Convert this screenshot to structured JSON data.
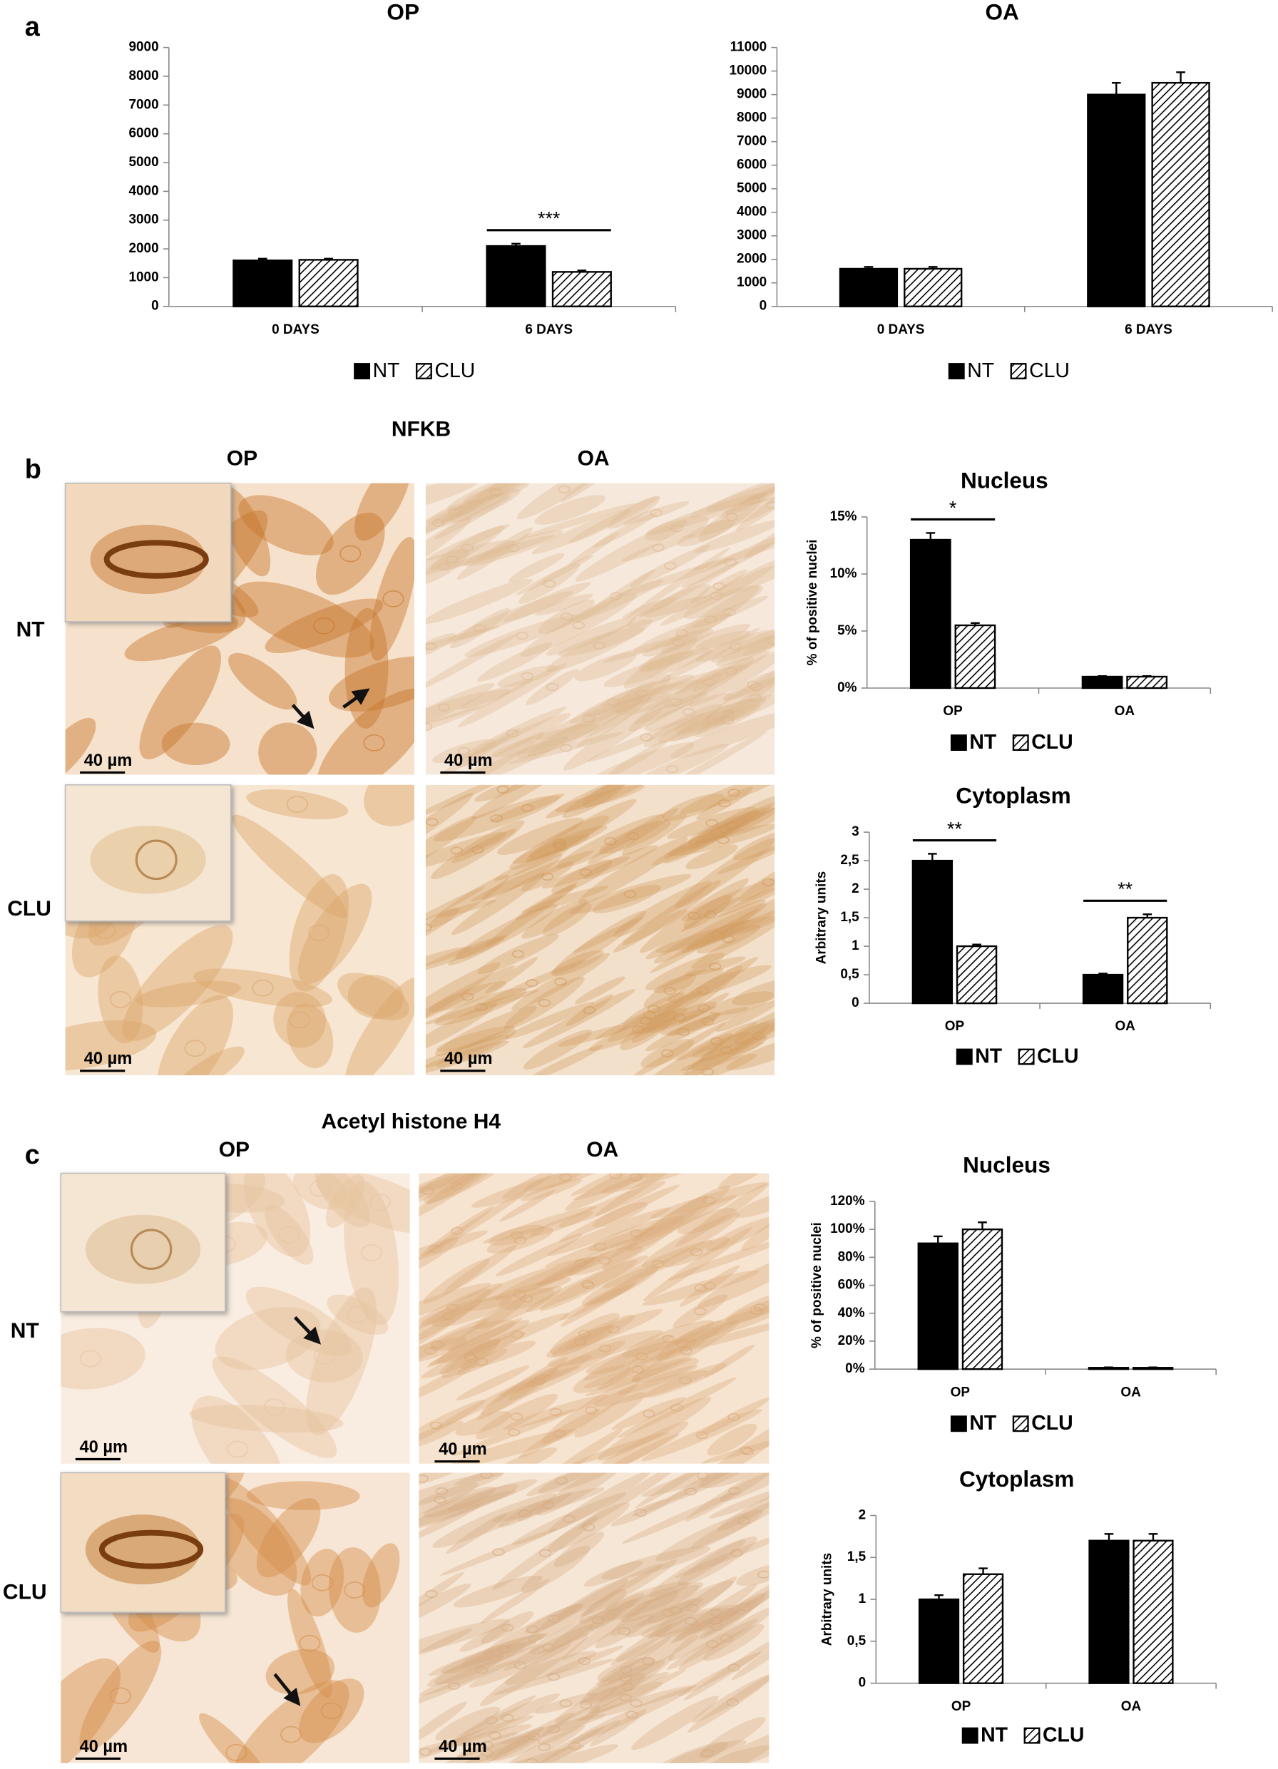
{
  "figure": {
    "panels": [
      {
        "label": "a"
      },
      {
        "label": "b",
        "title": "NFKB",
        "columns": [
          "OP",
          "OA"
        ],
        "rows": [
          "NT",
          "CLU"
        ],
        "scale_bar": "40 µm"
      },
      {
        "label": "c",
        "title": "Acetyl histone H4",
        "columns": [
          "OP",
          "OA"
        ],
        "rows": [
          "NT",
          "CLU"
        ],
        "scale_bar": "40 µm"
      }
    ]
  },
  "chart_data": [
    {
      "type": "bar",
      "title": "OP",
      "categories": [
        "0 DAYS",
        "6 DAYS"
      ],
      "series": [
        {
          "name": "NT",
          "color": "#000000",
          "hatched": false,
          "values": [
            1600,
            2100
          ],
          "errors": [
            60,
            80
          ]
        },
        {
          "name": "CLU",
          "color": "#000000",
          "hatched": true,
          "values": [
            1620,
            1200
          ],
          "errors": [
            40,
            50
          ]
        }
      ],
      "ylim": [
        0,
        9000
      ],
      "yticks": [
        0,
        1000,
        2000,
        3000,
        4000,
        5000,
        6000,
        7000,
        8000,
        9000
      ],
      "annotations": [
        {
          "text": "***",
          "category": "6 DAYS"
        }
      ]
    },
    {
      "type": "bar",
      "title": "OA",
      "categories": [
        "0 DAYS",
        "6 DAYS"
      ],
      "series": [
        {
          "name": "NT",
          "color": "#000000",
          "hatched": false,
          "values": [
            1600,
            9000
          ],
          "errors": [
            80,
            500
          ]
        },
        {
          "name": "CLU",
          "color": "#000000",
          "hatched": true,
          "values": [
            1600,
            9500
          ],
          "errors": [
            80,
            450
          ]
        }
      ],
      "ylim": [
        0,
        11000
      ],
      "yticks": [
        0,
        1000,
        2000,
        3000,
        4000,
        5000,
        6000,
        7000,
        8000,
        9000,
        10000,
        11000
      ]
    },
    {
      "type": "bar",
      "title": "Nucleus",
      "y_label": "% of positive nuclei",
      "categories": [
        "OP",
        "OA"
      ],
      "series": [
        {
          "name": "NT",
          "color": "#000000",
          "hatched": false,
          "values": [
            13,
            1
          ],
          "errors": [
            0.6,
            0.05
          ]
        },
        {
          "name": "CLU",
          "color": "#000000",
          "hatched": true,
          "values": [
            5.5,
            1
          ],
          "errors": [
            0.2,
            0.05
          ]
        }
      ],
      "ylim": [
        0,
        15
      ],
      "yticks": [
        {
          "value": 0,
          "label": "0%"
        },
        {
          "value": 5,
          "label": "5%"
        },
        {
          "value": 10,
          "label": "10%"
        },
        {
          "value": 15,
          "label": "15%"
        }
      ],
      "annotations": [
        {
          "text": "*",
          "category": "OP"
        }
      ]
    },
    {
      "type": "bar",
      "title": "Cytoplasm",
      "y_label": "Arbitrary units",
      "categories": [
        "OP",
        "OA"
      ],
      "series": [
        {
          "name": "NT",
          "color": "#000000",
          "hatched": false,
          "values": [
            2.5,
            0.5
          ],
          "errors": [
            0.12,
            0.02
          ]
        },
        {
          "name": "CLU",
          "color": "#000000",
          "hatched": true,
          "values": [
            1,
            1.5
          ],
          "errors": [
            0.03,
            0.06
          ]
        }
      ],
      "ylim": [
        0,
        3
      ],
      "yticks": [
        0,
        {
          "value": 0.5,
          "label": "0,5"
        },
        1,
        {
          "value": 1.5,
          "label": "1,5"
        },
        2,
        {
          "value": 2.5,
          "label": "2,5"
        },
        3
      ],
      "annotations": [
        {
          "text": "**",
          "category": "OP"
        },
        {
          "text": "**",
          "category": "OA"
        }
      ]
    },
    {
      "type": "bar",
      "title": "Nucleus",
      "y_label": "% of positive nuclei",
      "categories": [
        "OP",
        "OA"
      ],
      "series": [
        {
          "name": "NT",
          "color": "#000000",
          "hatched": false,
          "values": [
            90,
            1
          ],
          "errors": [
            5,
            0.3
          ]
        },
        {
          "name": "CLU",
          "color": "#000000",
          "hatched": true,
          "values": [
            100,
            1
          ],
          "errors": [
            5,
            0.3
          ]
        }
      ],
      "ylim": [
        0,
        120
      ],
      "yticks": [
        {
          "value": 0,
          "label": "0%"
        },
        {
          "value": 20,
          "label": "20%"
        },
        {
          "value": 40,
          "label": "40%"
        },
        {
          "value": 60,
          "label": "60%"
        },
        {
          "value": 80,
          "label": "80%"
        },
        {
          "value": 100,
          "label": "100%"
        },
        {
          "value": 120,
          "label": "120%"
        }
      ]
    },
    {
      "type": "bar",
      "title": "Cytoplasm",
      "y_label": "Arbitrary units",
      "categories": [
        "OP",
        "OA"
      ],
      "series": [
        {
          "name": "NT",
          "color": "#000000",
          "hatched": false,
          "values": [
            1,
            1.7
          ],
          "errors": [
            0.05,
            0.08
          ]
        },
        {
          "name": "CLU",
          "color": "#000000",
          "hatched": true,
          "values": [
            1.3,
            1.7
          ],
          "errors": [
            0.07,
            0.08
          ]
        }
      ],
      "ylim": [
        0,
        2
      ],
      "yticks": [
        0,
        {
          "value": 0.5,
          "label": "0,5"
        },
        1,
        {
          "value": 1.5,
          "label": "1,5"
        },
        2
      ]
    }
  ]
}
